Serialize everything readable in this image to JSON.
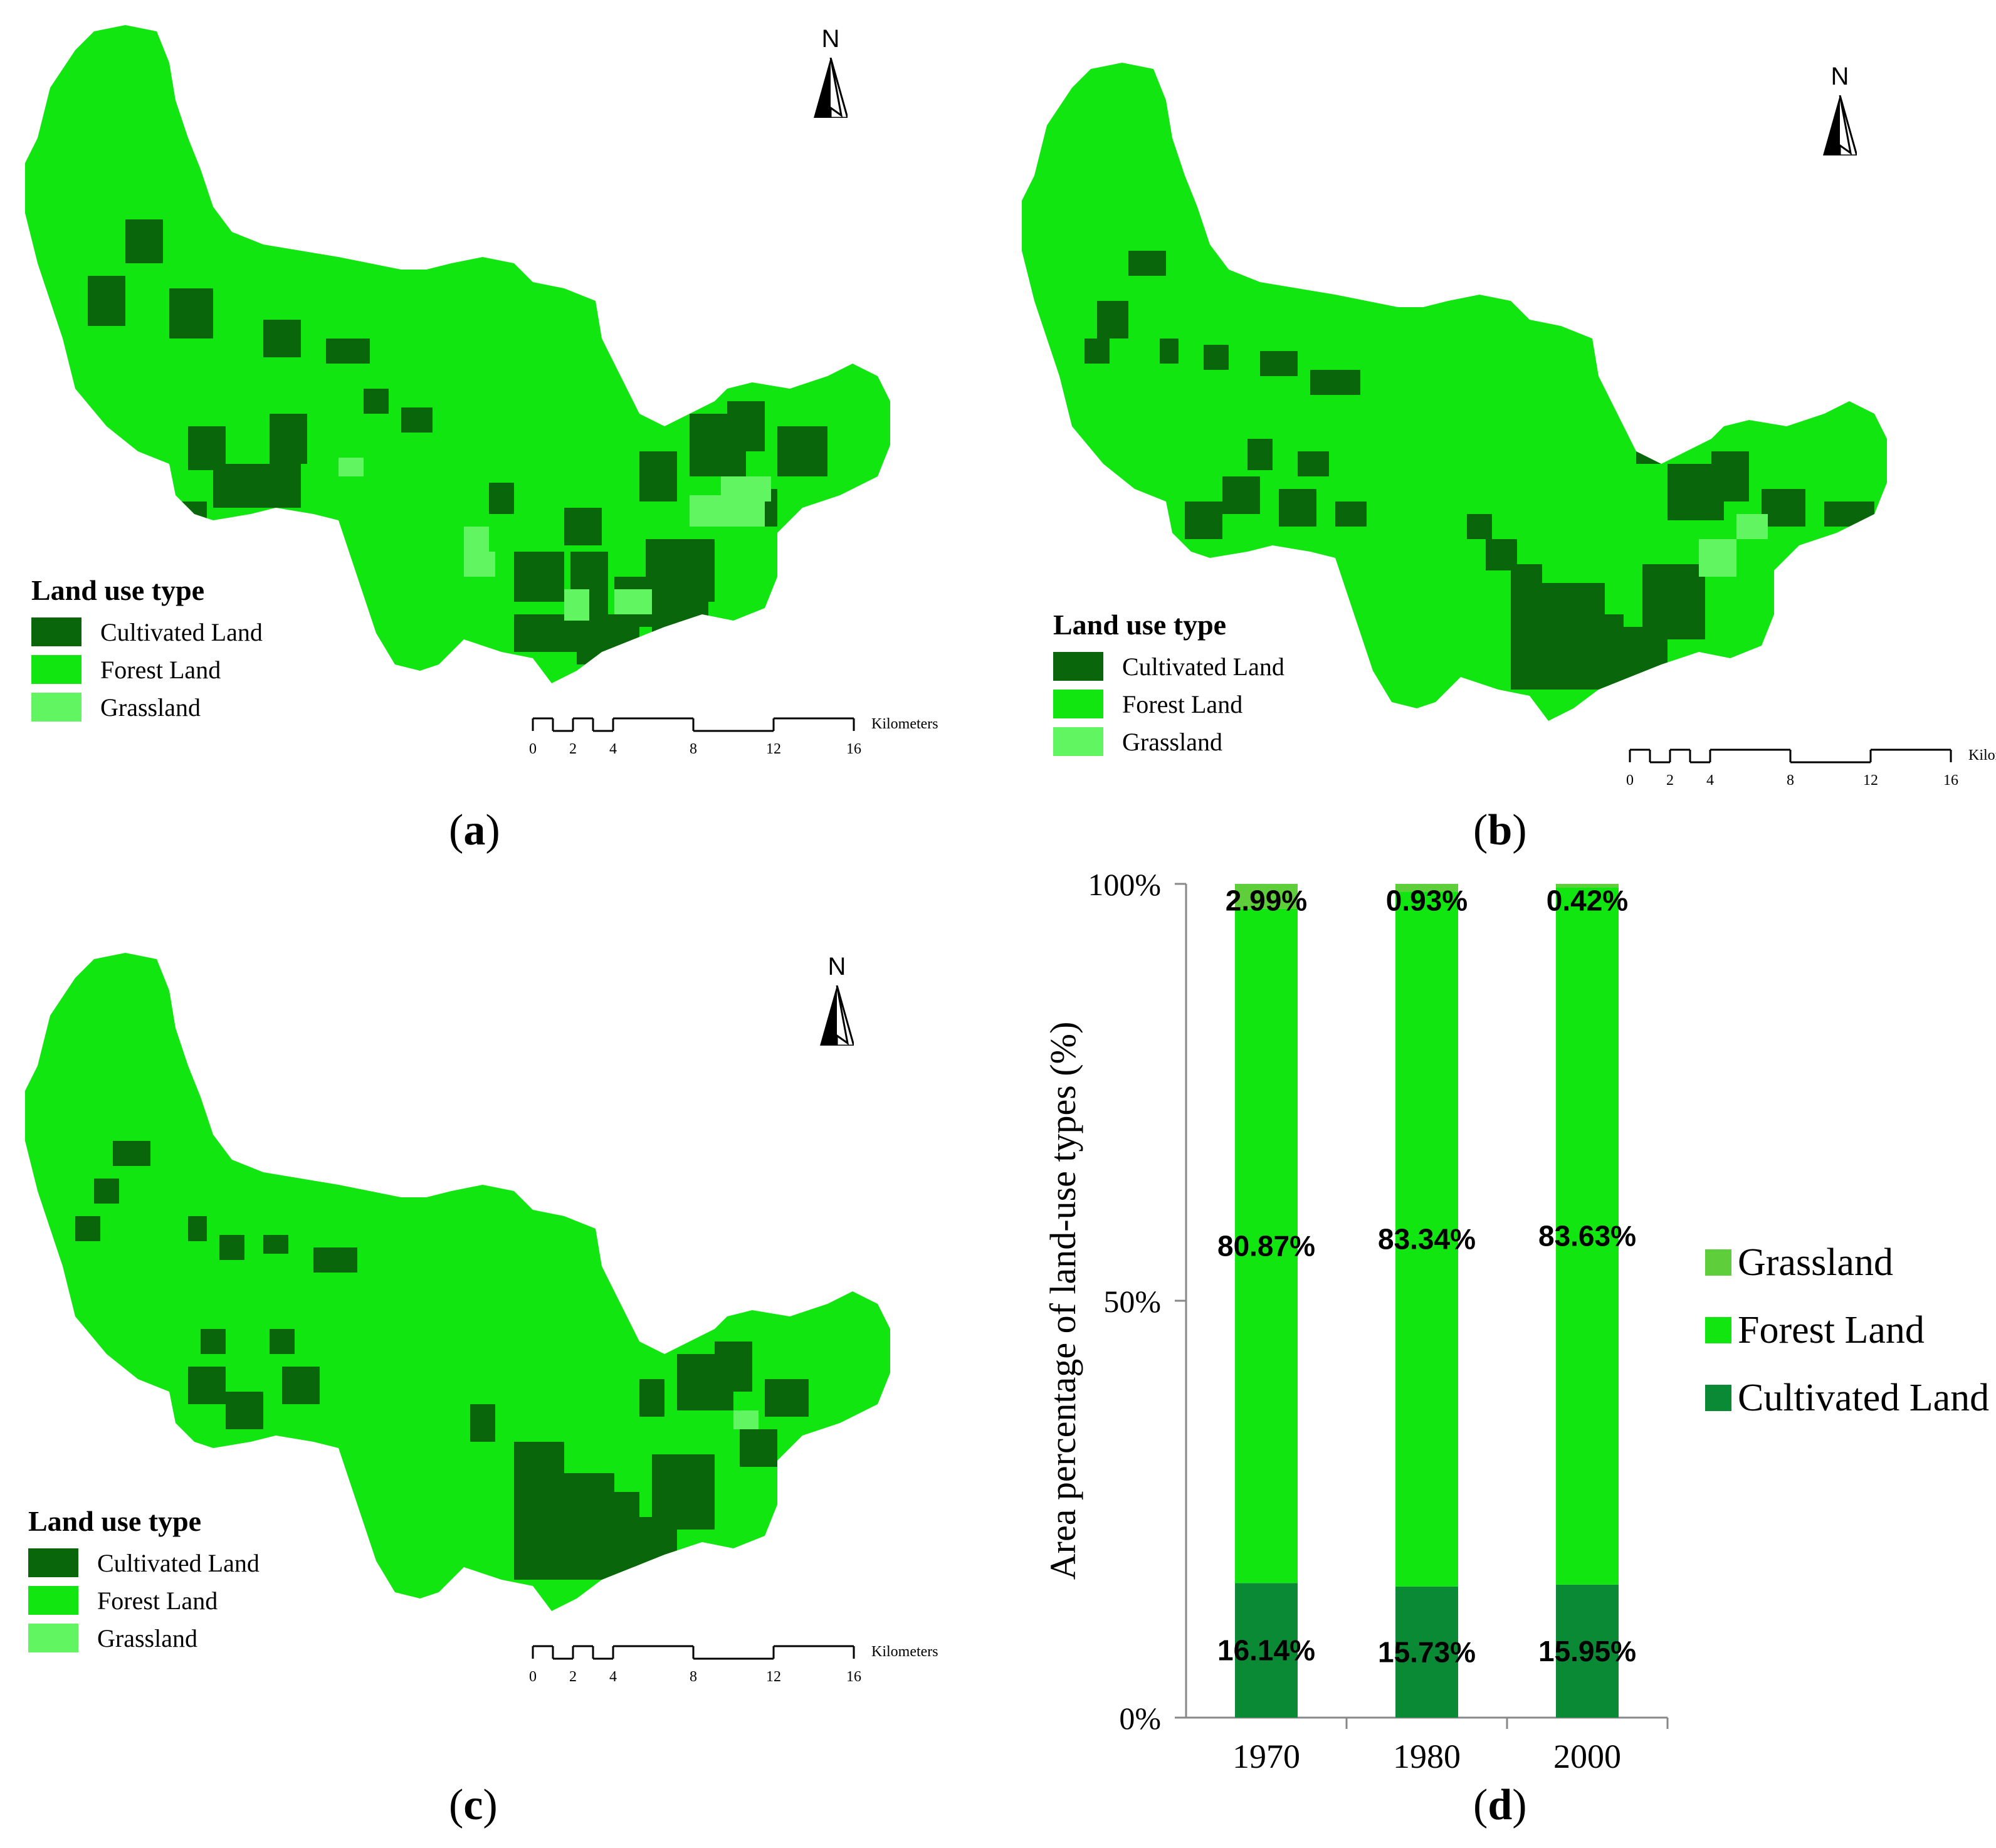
{
  "colors": {
    "cultivated": "#0a660a",
    "forest": "#11e611",
    "grassland": "#61f661",
    "chart_cultivated": "#0b8a35",
    "chart_forest": "#11e611",
    "chart_grassland": "#5ece3a"
  },
  "maps": [
    {
      "caption_open": "(",
      "caption_letter": "a",
      "caption_close": ")",
      "legend_title": "Land use type",
      "legend_items": [
        "Cultivated Land",
        "Forest Land",
        "Grassland"
      ],
      "north_label": "N",
      "scale_ticks": [
        "0",
        "2",
        "4",
        "8",
        "12",
        "16"
      ],
      "scale_unit": "Kilometers"
    },
    {
      "caption_open": "(",
      "caption_letter": "b",
      "caption_close": ")",
      "legend_title": "Land use type",
      "legend_items": [
        "Cultivated Land",
        "Forest Land",
        "Grassland"
      ],
      "north_label": "N",
      "scale_ticks": [
        "0",
        "2",
        "4",
        "8",
        "12",
        "16"
      ],
      "scale_unit": "Kilometers"
    },
    {
      "caption_open": "(",
      "caption_letter": "c",
      "caption_close": ")",
      "legend_title": "Land use type",
      "legend_items": [
        "Cultivated Land",
        "Forest Land",
        "Grassland"
      ],
      "north_label": "N",
      "scale_ticks": [
        "0",
        "2",
        "4",
        "8",
        "12",
        "16"
      ],
      "scale_unit": "Kilometers"
    }
  ],
  "chart_caption": {
    "open": "(",
    "letter": "d",
    "close": ")"
  },
  "chart_data": {
    "type": "bar",
    "stacked": true,
    "categories": [
      "1970",
      "1980",
      "2000"
    ],
    "series": [
      {
        "name": "Cultivated Land",
        "values": [
          16.14,
          15.73,
          15.95
        ],
        "labels": [
          "16.14%",
          "15.73%",
          "15.95%"
        ]
      },
      {
        "name": "Forest Land",
        "values": [
          80.87,
          83.34,
          83.63
        ],
        "labels": [
          "80.87%",
          "83.34%",
          "83.63%"
        ]
      },
      {
        "name": "Grassland",
        "values": [
          2.99,
          0.93,
          0.42
        ],
        "labels": [
          "2.99%",
          "0.93%",
          "0.42%"
        ]
      }
    ],
    "ylabel": "Area percentage of land-use types (%)",
    "yticks": [
      "0%",
      "50%",
      "100%"
    ],
    "ylim": [
      0,
      100
    ],
    "legend_order": [
      "Grassland",
      "Forest Land",
      "Cultivated Land"
    ],
    "legend_position": "right",
    "grid": false
  }
}
